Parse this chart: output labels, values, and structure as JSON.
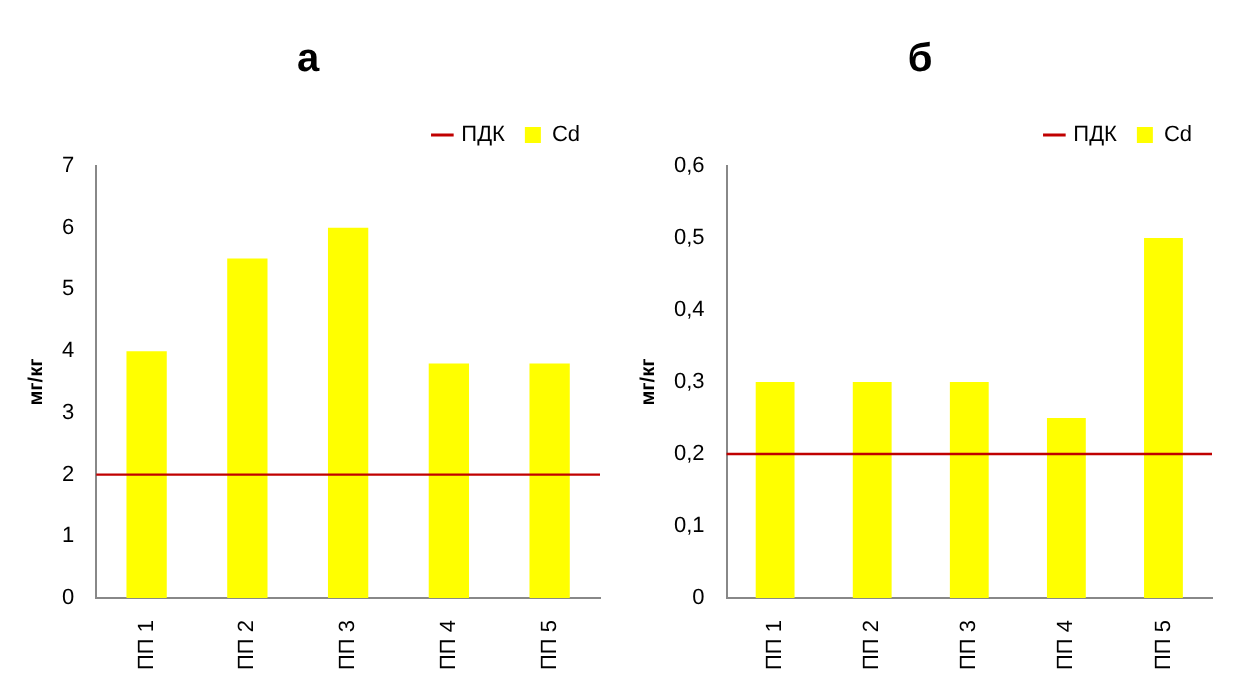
{
  "chart_data": [
    {
      "type": "bar",
      "title": "а",
      "ylabel": "мг/кг",
      "categories": [
        "ПП 1",
        "ПП 2",
        "ПП 3",
        "ПП 4",
        "ПП 5"
      ],
      "series": [
        {
          "name": "Cd",
          "color": "#ffff00",
          "values": [
            4,
            5.5,
            6,
            3.8,
            3.8
          ]
        }
      ],
      "ylim": [
        0,
        7
      ],
      "yticks": [
        0,
        1,
        2,
        3,
        4,
        5,
        6,
        7
      ],
      "grid": false,
      "legend": "top right",
      "ref_lines": [
        {
          "axis": "y",
          "value": 2,
          "label": "ПДК",
          "color": "#c00000"
        }
      ]
    },
    {
      "type": "bar",
      "title": "б",
      "ylabel": "мг/кг",
      "categories": [
        "ПП 1",
        "ПП 2",
        "ПП 3",
        "ПП 4",
        "ПП 5"
      ],
      "series": [
        {
          "name": "Cd",
          "color": "#ffff00",
          "values": [
            0.3,
            0.3,
            0.3,
            0.25,
            0.5
          ]
        }
      ],
      "ylim": [
        0,
        0.6
      ],
      "yticks": [
        0,
        {
          "value": 0.1,
          "label": "0,1"
        },
        {
          "value": 0.2,
          "label": "0,2"
        },
        {
          "value": 0.3,
          "label": "0,3"
        },
        {
          "value": 0.4,
          "label": "0,4"
        },
        {
          "value": 0.5,
          "label": "0,5"
        },
        {
          "value": 0.6,
          "label": "0,6"
        }
      ],
      "grid": false,
      "legend": "top right",
      "ref_lines": [
        {
          "axis": "y",
          "value": 0.2,
          "label": "ПДК",
          "color": "#c00000"
        }
      ]
    }
  ]
}
